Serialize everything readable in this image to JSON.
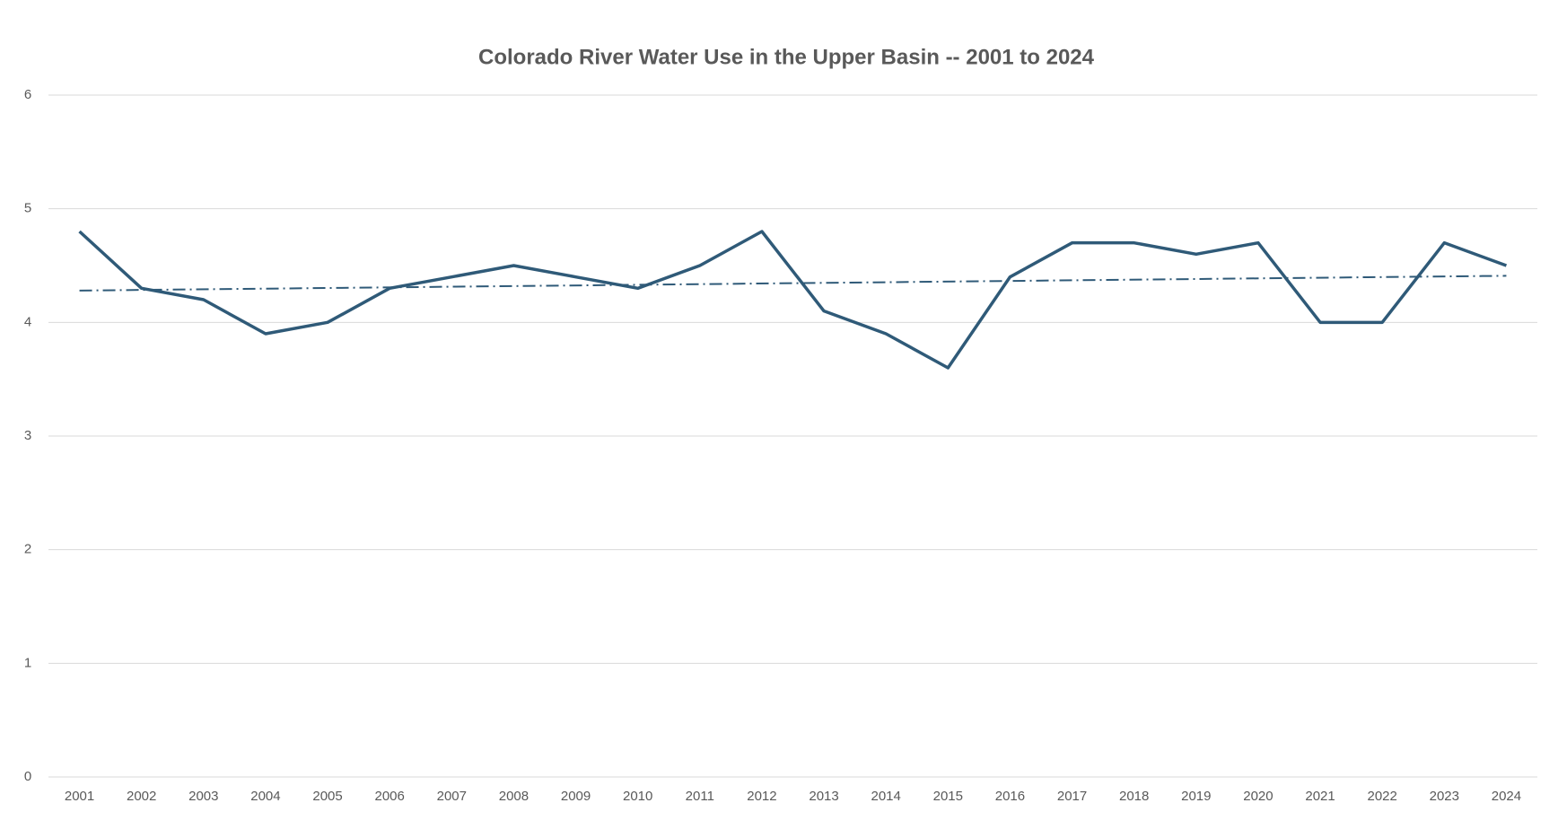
{
  "chart_data": {
    "type": "line",
    "title": "Colorado River Water Use in the Upper Basin -- 2001 to 2024",
    "categories": [
      "2001",
      "2002",
      "2003",
      "2004",
      "2005",
      "2006",
      "2007",
      "2008",
      "2009",
      "2010",
      "2011",
      "2012",
      "2013",
      "2014",
      "2015",
      "2016",
      "2017",
      "2018",
      "2019",
      "2020",
      "2021",
      "2022",
      "2023",
      "2024"
    ],
    "series": [
      {
        "color": "#2f5a78",
        "values": [
          4.8,
          4.3,
          4.2,
          3.9,
          4.0,
          4.3,
          4.4,
          4.5,
          4.4,
          4.3,
          4.5,
          4.8,
          4.1,
          3.9,
          3.6,
          4.4,
          4.7,
          4.7,
          4.6,
          4.7,
          4.0,
          4.0,
          4.7,
          4.5
        ]
      }
    ],
    "trendline": {
      "color": "#2f5a78",
      "style": "dash-dot",
      "values": [
        4.28,
        4.41
      ]
    },
    "ylim": [
      0,
      6
    ],
    "yticks": [
      0,
      1,
      2,
      3,
      4,
      5,
      6
    ],
    "grid": true
  }
}
